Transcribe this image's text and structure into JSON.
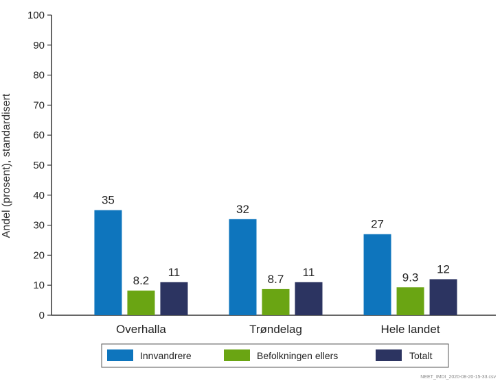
{
  "chart_data": {
    "type": "bar",
    "categories": [
      "Overhalla",
      "Trøndelag",
      "Hele landet"
    ],
    "series": [
      {
        "name": "Innvandrere",
        "color": "#0e75bd",
        "values": [
          35,
          32,
          27
        ],
        "labels": [
          "35",
          "32",
          "27"
        ]
      },
      {
        "name": "Befolkningen ellers",
        "color": "#6aa513",
        "values": [
          8.2,
          8.7,
          9.3
        ],
        "labels": [
          "8.2",
          "8.7",
          "9.3"
        ]
      },
      {
        "name": "Totalt",
        "color": "#2c3461",
        "values": [
          11,
          11,
          12
        ],
        "labels": [
          "11",
          "11",
          "12"
        ]
      }
    ],
    "ylabel": "Andel (prosent), standardisert",
    "xlabel": "",
    "ylim": [
      0,
      100
    ],
    "yticks": [
      0,
      10,
      20,
      30,
      40,
      50,
      60,
      70,
      80,
      90,
      100
    ],
    "grid": false,
    "legend_position": "bottom"
  },
  "source_note": "NEET_IMDI_2020-08-20-15-33.csv"
}
